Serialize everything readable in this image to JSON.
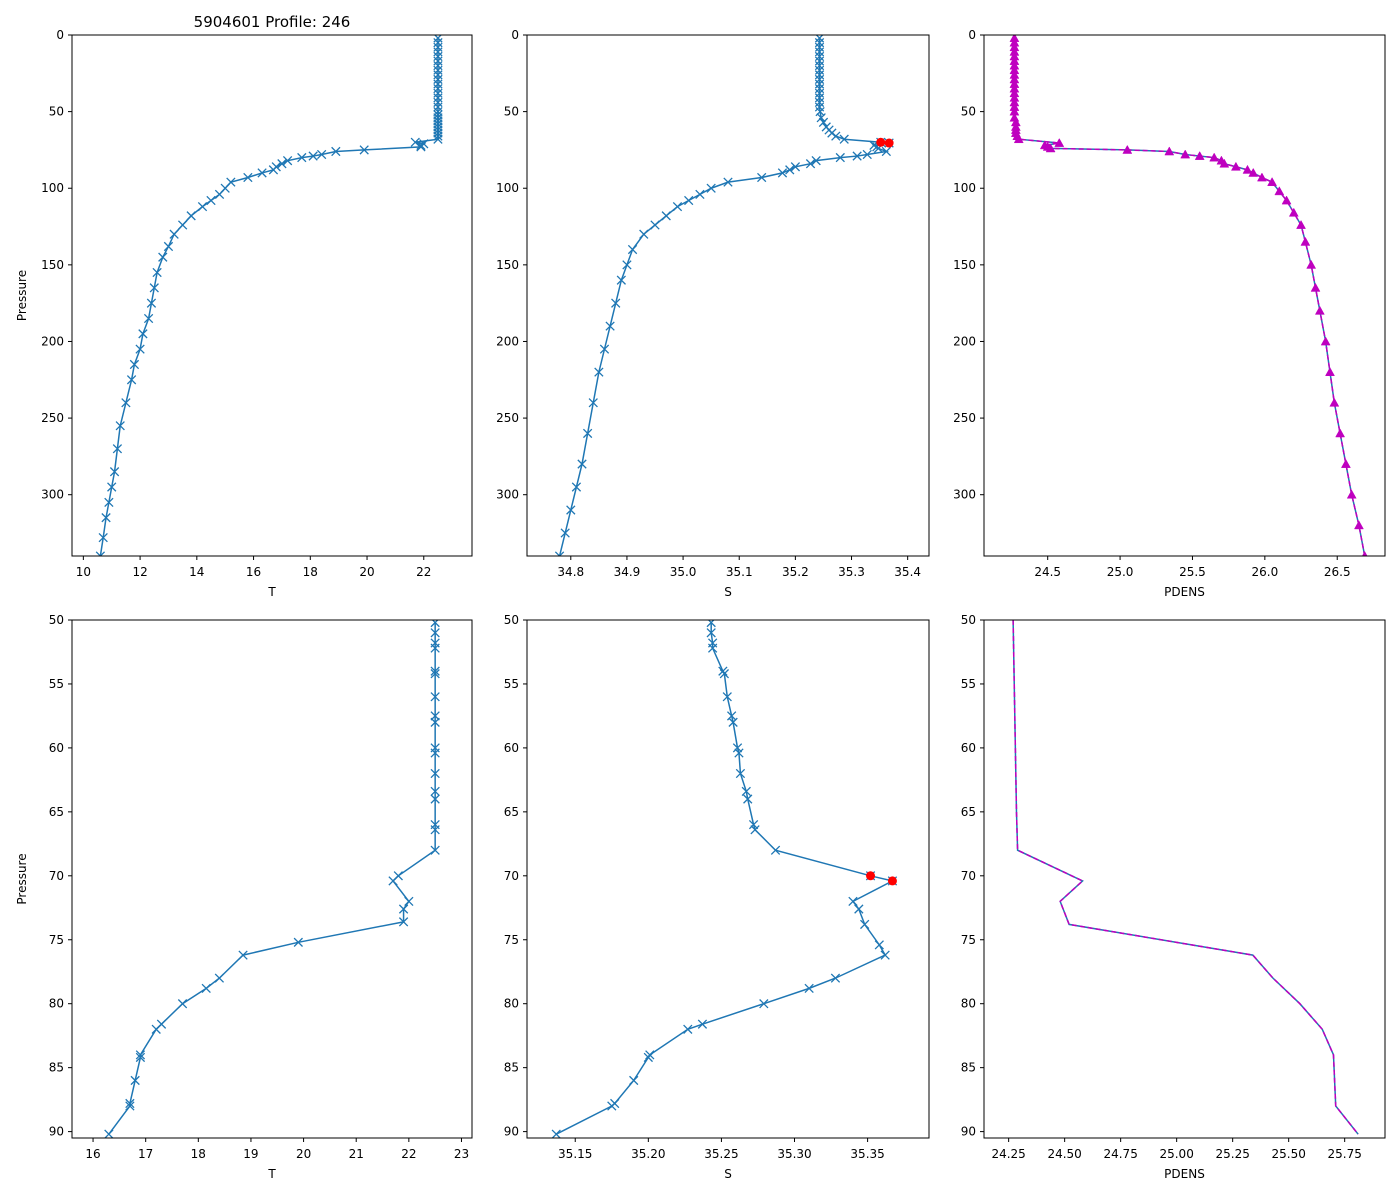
{
  "chart_data": [
    {
      "type": "line",
      "panel": "top-left",
      "title": "5904601 Profile: 246",
      "xlabel": "T",
      "ylabel": "Pressure",
      "xlim": [
        9.6,
        23.7
      ],
      "ylim": [
        340,
        0
      ],
      "xticks": [
        10,
        12,
        14,
        16,
        18,
        20,
        22
      ],
      "yticks": [
        0,
        50,
        100,
        150,
        200,
        250,
        300
      ],
      "series": [
        {
          "name": "T",
          "style": "line-x-marker",
          "color": "#1f77b4",
          "x": [
            22.5,
            22.5,
            22.5,
            22.5,
            22.5,
            22.5,
            22.5,
            22.5,
            22.5,
            22.5,
            22.5,
            22.5,
            22.5,
            22.5,
            22.5,
            22.5,
            22.5,
            22.5,
            22.5,
            22.5,
            22.5,
            22.5,
            22.5,
            22.5,
            22.5,
            22.5,
            21.7,
            22.0,
            21.9,
            21.9,
            19.9,
            18.9,
            18.4,
            18.1,
            17.7,
            17.2,
            17.0,
            16.8,
            16.7,
            16.3,
            15.8,
            15.2,
            15.0,
            14.8,
            14.5,
            14.2,
            13.8,
            13.5,
            13.2,
            13.0,
            12.8,
            12.6,
            12.5,
            12.4,
            12.3,
            12.1,
            12.0,
            11.8,
            11.7,
            11.5,
            11.3,
            11.2,
            11.1,
            11.0,
            10.9,
            10.8,
            10.7,
            10.6
          ],
          "y": [
            2,
            5,
            8,
            11,
            14,
            17,
            20,
            23,
            26,
            29,
            32,
            35,
            38,
            41,
            44,
            47,
            50,
            52,
            54,
            56,
            58,
            60,
            62,
            64,
            66,
            68,
            70,
            71,
            72,
            73,
            75,
            76,
            78,
            79,
            80,
            82,
            84,
            86,
            88,
            90,
            93,
            96,
            100,
            104,
            108,
            112,
            118,
            124,
            130,
            138,
            145,
            155,
            165,
            175,
            185,
            195,
            205,
            215,
            225,
            240,
            255,
            270,
            285,
            295,
            305,
            315,
            328,
            340
          ]
        }
      ]
    },
    {
      "type": "line",
      "panel": "top-middle",
      "xlabel": "S",
      "ylabel": "",
      "xlim": [
        34.722,
        35.438
      ],
      "ylim": [
        340,
        0
      ],
      "xticks": [
        34.8,
        34.9,
        35.0,
        35.1,
        35.2,
        35.3,
        35.4
      ],
      "xtick_labels": [
        "34.8",
        "34.9",
        "35.0",
        "35.1",
        "35.2",
        "35.3",
        "35.4"
      ],
      "yticks": [
        0,
        50,
        100,
        150,
        200,
        250,
        300
      ],
      "series": [
        {
          "name": "S",
          "style": "line-x-marker",
          "color": "#1f77b4",
          "x": [
            35.243,
            35.243,
            35.243,
            35.243,
            35.243,
            35.243,
            35.243,
            35.243,
            35.243,
            35.243,
            35.243,
            35.243,
            35.243,
            35.243,
            35.243,
            35.243,
            35.244,
            35.246,
            35.25,
            35.255,
            35.26,
            35.265,
            35.272,
            35.287,
            35.352,
            35.367,
            35.34,
            35.345,
            35.348,
            35.362,
            35.328,
            35.31,
            35.28,
            35.237,
            35.227,
            35.2,
            35.19,
            35.177,
            35.14,
            35.08,
            35.05,
            35.03,
            35.01,
            34.99,
            34.97,
            34.95,
            34.93,
            34.91,
            34.9,
            34.89,
            34.88,
            34.87,
            34.86,
            34.85,
            34.84,
            34.83,
            34.82,
            34.81,
            34.8,
            34.79,
            34.78
          ],
          "y": [
            2,
            5,
            8,
            11,
            14,
            17,
            20,
            23,
            26,
            29,
            32,
            35,
            38,
            41,
            44,
            47,
            50,
            54,
            57,
            60,
            62,
            64,
            66,
            68,
            70,
            70.5,
            72,
            73,
            74,
            76,
            78,
            79,
            80,
            82,
            84,
            86,
            88,
            90,
            93,
            96,
            100,
            104,
            108,
            112,
            118,
            124,
            130,
            140,
            150,
            160,
            175,
            190,
            205,
            220,
            240,
            260,
            280,
            295,
            310,
            325,
            340
          ]
        },
        {
          "name": "flagged",
          "style": "markers-red",
          "color": "#ff0000",
          "x": [
            35.352,
            35.367
          ],
          "y": [
            70,
            70.5
          ]
        }
      ]
    },
    {
      "type": "line",
      "panel": "top-right",
      "xlabel": "PDENS",
      "ylabel": "",
      "xlim": [
        24.06,
        26.83
      ],
      "ylim": [
        340,
        0
      ],
      "xticks": [
        24.5,
        25.0,
        25.5,
        26.0,
        26.5
      ],
      "xtick_labels": [
        "24.5",
        "25.0",
        "25.5",
        "26.0",
        "26.5"
      ],
      "yticks": [
        0,
        50,
        100,
        150,
        200,
        250,
        300
      ],
      "series": [
        {
          "name": "PDENS",
          "style": "line-triangle-marker",
          "color": "#1f77b4",
          "marker_color": "#bf00bf",
          "x": [
            24.27,
            24.27,
            24.27,
            24.27,
            24.27,
            24.27,
            24.27,
            24.27,
            24.27,
            24.27,
            24.27,
            24.27,
            24.27,
            24.27,
            24.27,
            24.27,
            24.27,
            24.27,
            24.28,
            24.28,
            24.28,
            24.28,
            24.29,
            24.3,
            24.58,
            24.48,
            24.5,
            24.52,
            25.05,
            25.34,
            25.45,
            25.55,
            25.65,
            25.7,
            25.72,
            25.8,
            25.88,
            25.92,
            25.98,
            26.05,
            26.1,
            26.15,
            26.2,
            26.25,
            26.28,
            26.32,
            26.35,
            26.38,
            26.42,
            26.45,
            26.48,
            26.52,
            26.56,
            26.6,
            26.65,
            26.69
          ],
          "y": [
            2,
            5,
            8,
            11,
            14,
            17,
            20,
            23,
            26,
            29,
            32,
            35,
            38,
            41,
            44,
            47,
            50,
            54,
            57,
            60,
            62,
            64,
            66,
            68,
            70.5,
            72,
            73,
            74,
            75,
            76,
            78,
            79,
            80,
            82,
            84,
            86,
            88,
            90,
            93,
            96,
            102,
            108,
            116,
            124,
            135,
            150,
            165,
            180,
            200,
            220,
            240,
            260,
            280,
            300,
            320,
            340
          ]
        }
      ]
    },
    {
      "type": "line",
      "panel": "bottom-left",
      "xlabel": "T",
      "ylabel": "Pressure",
      "xlim": [
        15.6,
        23.2
      ],
      "ylim": [
        90.5,
        50
      ],
      "xticks": [
        16,
        17,
        18,
        19,
        20,
        21,
        22,
        23
      ],
      "yticks": [
        50,
        55,
        60,
        65,
        70,
        75,
        80,
        85,
        90
      ],
      "series": [
        {
          "name": "T",
          "style": "line-x-marker",
          "color": "#1f77b4",
          "x": [
            22.5,
            22.5,
            22.5,
            22.5,
            22.5,
            22.5,
            22.5,
            22.5,
            22.5,
            22.5,
            22.5,
            22.5,
            22.5,
            22.5,
            22.5,
            22.5,
            22.5,
            21.8,
            21.7,
            22.0,
            21.9,
            21.9,
            19.9,
            18.85,
            18.4,
            18.15,
            17.7,
            17.3,
            17.2,
            16.9,
            16.9,
            16.8,
            16.7,
            16.7,
            16.3
          ],
          "y": [
            50.2,
            51.0,
            51.8,
            52.2,
            54.0,
            54.2,
            56.0,
            57.5,
            58.0,
            60.0,
            60.4,
            62.0,
            63.4,
            64.0,
            66.0,
            66.4,
            68.0,
            70.0,
            70.4,
            72.0,
            72.6,
            73.6,
            75.2,
            76.2,
            78.0,
            78.8,
            80.0,
            81.6,
            82.0,
            84.0,
            84.2,
            86.0,
            87.8,
            88.0,
            90.2
          ]
        }
      ]
    },
    {
      "type": "line",
      "panel": "bottom-middle",
      "xlabel": "S",
      "ylabel": "",
      "xlim": [
        35.117,
        35.392
      ],
      "ylim": [
        90.5,
        50
      ],
      "xticks": [
        35.15,
        35.2,
        35.25,
        35.3,
        35.35
      ],
      "xtick_labels": [
        "35.15",
        "35.20",
        "35.25",
        "35.30",
        "35.35"
      ],
      "yticks": [
        50,
        55,
        60,
        65,
        70,
        75,
        80,
        85,
        90
      ],
      "series": [
        {
          "name": "S",
          "style": "line-x-marker",
          "color": "#1f77b4",
          "x": [
            35.243,
            35.243,
            35.244,
            35.244,
            35.251,
            35.252,
            35.254,
            35.257,
            35.258,
            35.261,
            35.262,
            35.263,
            35.267,
            35.268,
            35.272,
            35.273,
            35.287,
            35.352,
            35.367,
            35.34,
            35.344,
            35.348,
            35.358,
            35.362,
            35.328,
            35.31,
            35.279,
            35.237,
            35.227,
            35.201,
            35.2,
            35.19,
            35.177,
            35.175,
            35.137
          ],
          "y": [
            50.2,
            51.0,
            51.8,
            52.2,
            54.0,
            54.2,
            56.0,
            57.5,
            58.0,
            60.0,
            60.4,
            62.0,
            63.4,
            64.0,
            66.0,
            66.4,
            68.0,
            70.0,
            70.4,
            72.0,
            72.6,
            73.8,
            75.4,
            76.2,
            78.0,
            78.8,
            80.0,
            81.6,
            82.0,
            84.0,
            84.2,
            86.0,
            87.8,
            88.0,
            90.2
          ]
        },
        {
          "name": "flagged",
          "style": "markers-red",
          "color": "#ff0000",
          "x": [
            35.352,
            35.367
          ],
          "y": [
            70.0,
            70.4
          ]
        }
      ]
    },
    {
      "type": "line",
      "panel": "bottom-right",
      "xlabel": "PDENS",
      "ylabel": "",
      "xlim": [
        24.14,
        25.93
      ],
      "ylim": [
        90.5,
        50
      ],
      "xticks": [
        24.25,
        24.5,
        24.75,
        25.0,
        25.25,
        25.5,
        25.75
      ],
      "xtick_labels": [
        "24.25",
        "24.50",
        "24.75",
        "25.00",
        "25.25",
        "25.50",
        "25.75"
      ],
      "yticks": [
        50,
        55,
        60,
        65,
        70,
        75,
        80,
        85,
        90
      ],
      "series": [
        {
          "name": "PDENS",
          "style": "line-overlaid-dashed",
          "color": "#1f77b4",
          "dash_color": "#bf00bf",
          "x": [
            24.27,
            24.275,
            24.28,
            24.285,
            24.29,
            24.58,
            24.48,
            24.52,
            25.34,
            25.43,
            25.55,
            25.65,
            25.7,
            25.71,
            25.81
          ],
          "y": [
            50,
            55,
            60,
            65,
            68,
            70.4,
            72.0,
            73.8,
            76.2,
            78.0,
            80.0,
            82.0,
            84.0,
            88.0,
            90.2
          ]
        }
      ]
    }
  ]
}
